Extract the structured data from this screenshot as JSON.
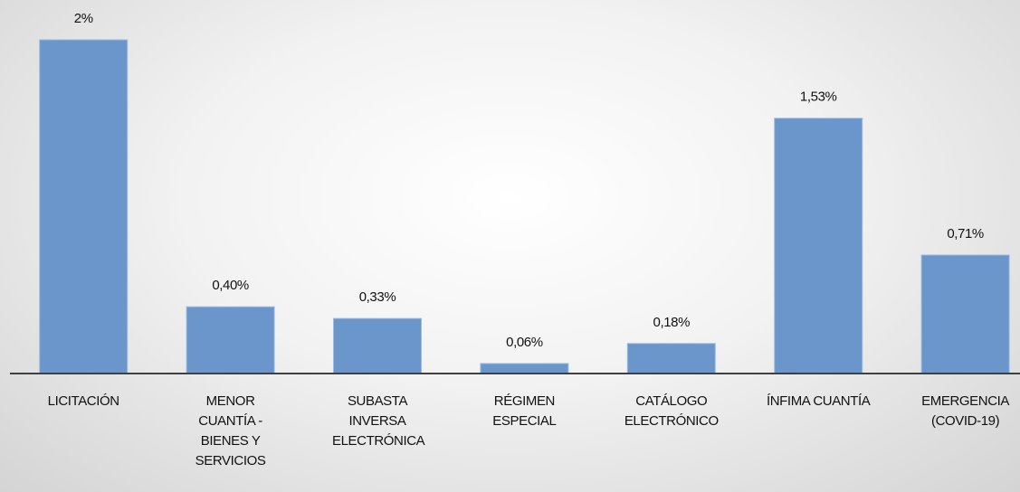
{
  "chart_data": {
    "type": "bar",
    "categories": [
      "LICITACIÓN",
      "MENOR CUANTÍA - BIENES Y SERVICIOS",
      "SUBASTA INVERSA ELECTRÓNICA",
      "RÉGIMEN ESPECIAL",
      "CATÁLOGO ELECTRÓNICO",
      "ÍNFIMA CUANTÍA",
      "EMERGENCIA (COVID-19)"
    ],
    "values": [
      2,
      0.4,
      0.33,
      0.06,
      0.18,
      1.53,
      0.71
    ],
    "value_labels": [
      "2%",
      "0,40%",
      "0,33%",
      "0,06%",
      "0,18%",
      "1,53%",
      "0,71%"
    ],
    "color": "#6a96cc"
  }
}
